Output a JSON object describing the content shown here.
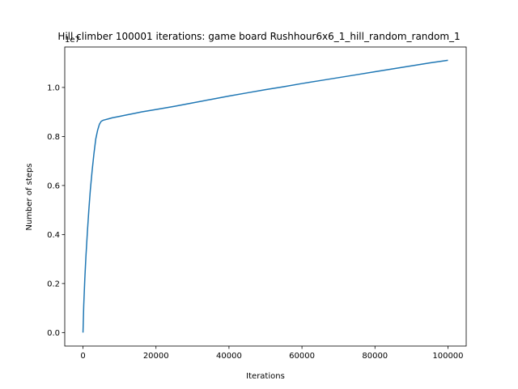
{
  "chart_data": {
    "type": "line",
    "title": "Hill climber 100001 iterations: game board Rushhour6x6_1_hill_random_random_1",
    "xlabel": "Iterations",
    "ylabel": "Number of steps",
    "offset_text": "1e7",
    "xlim": [
      -5000,
      105000
    ],
    "ylim": [
      -0.055,
      1.165
    ],
    "x_ticks": [
      0,
      20000,
      40000,
      60000,
      80000,
      100000
    ],
    "x_tick_labels": [
      "0",
      "20000",
      "40000",
      "60000",
      "80000",
      "100000"
    ],
    "y_ticks": [
      0.0,
      0.2,
      0.4,
      0.6,
      0.8,
      1.0
    ],
    "y_tick_labels": [
      "0.0",
      "0.2",
      "0.4",
      "0.6",
      "0.8",
      "1.0"
    ],
    "grid": false,
    "color": "#1f77b4",
    "series": [
      {
        "x": [
          0,
          200,
          500,
          800,
          1200,
          1600,
          2000,
          2500,
          3000,
          3500,
          4000,
          4500,
          5000,
          5500,
          6000,
          7000,
          8000,
          10000,
          12000,
          14000,
          16000,
          18000,
          20000,
          25000,
          30000,
          35000,
          40000,
          45000,
          50000,
          55000,
          60000,
          65000,
          70000,
          75000,
          80000,
          85000,
          90000,
          95000,
          100000
        ],
        "y": [
          0.0,
          0.11,
          0.22,
          0.31,
          0.41,
          0.5,
          0.58,
          0.66,
          0.73,
          0.79,
          0.825,
          0.85,
          0.862,
          0.866,
          0.868,
          0.872,
          0.876,
          0.882,
          0.888,
          0.894,
          0.9,
          0.905,
          0.91,
          0.923,
          0.937,
          0.951,
          0.965,
          0.978,
          0.991,
          1.003,
          1.016,
          1.028,
          1.04,
          1.052,
          1.064,
          1.076,
          1.088,
          1.1,
          1.111
        ]
      }
    ]
  }
}
